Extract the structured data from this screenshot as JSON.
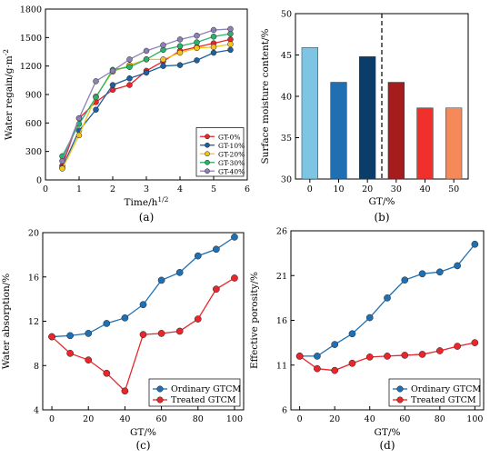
{
  "chart_data": [
    {
      "panel_label": "(a)",
      "type": "line",
      "xlabel": "Time/h¹ᐟ²",
      "xlabel_parts": [
        "Time/h",
        "1/2"
      ],
      "ylabel": "Water regain/g·m⁻²",
      "ylabel_parts": [
        "Water regain/g·m",
        "-2"
      ],
      "xlim": [
        0,
        6
      ],
      "ylim": [
        0,
        1800
      ],
      "xticks": [
        0,
        1,
        2,
        3,
        4,
        5,
        6
      ],
      "yticks": [
        0,
        300,
        600,
        900,
        1200,
        1500,
        1800
      ],
      "legend_position": "bottom-right",
      "x": [
        0.5,
        1,
        1.5,
        2,
        2.5,
        3,
        3.5,
        4,
        4.5,
        5,
        5.5
      ],
      "series": [
        {
          "name": "GT-0%",
          "color": "#e8262b",
          "values": [
            150,
            650,
            820,
            950,
            1000,
            1150,
            1250,
            1360,
            1400,
            1440,
            1480
          ]
        },
        {
          "name": "GT-10%",
          "color": "#1f5f9e",
          "values": [
            130,
            520,
            740,
            1000,
            1070,
            1130,
            1200,
            1210,
            1260,
            1340,
            1370
          ]
        },
        {
          "name": "GT-20%",
          "color": "#f5c21b",
          "values": [
            120,
            470,
            880,
            1140,
            1210,
            1270,
            1270,
            1340,
            1390,
            1400,
            1430
          ]
        },
        {
          "name": "GT-30%",
          "color": "#27b36b",
          "values": [
            250,
            590,
            870,
            1160,
            1190,
            1270,
            1370,
            1410,
            1450,
            1510,
            1540
          ]
        },
        {
          "name": "GT-40%",
          "color": "#8d7fb8",
          "values": [
            200,
            650,
            1040,
            1150,
            1270,
            1360,
            1420,
            1480,
            1520,
            1580,
            1590
          ]
        }
      ]
    },
    {
      "panel_label": "(b)",
      "type": "bar",
      "xlabel": "GT/%",
      "ylabel": "Surface moisture content/%",
      "categories": [
        "0",
        "10",
        "20",
        "30",
        "40",
        "50"
      ],
      "values": [
        45.9,
        41.7,
        44.8,
        41.7,
        38.6,
        38.6
      ],
      "bar_colors": [
        "#7ec4e3",
        "#1f6fb2",
        "#0b3d6b",
        "#a51c1c",
        "#f0302a",
        "#f5895a"
      ],
      "ylim": [
        30,
        50
      ],
      "yticks": [
        30,
        35,
        40,
        45,
        50
      ],
      "divider_between": [
        "20",
        "30"
      ]
    },
    {
      "panel_label": "(c)",
      "type": "line",
      "xlabel": "GT/%",
      "ylabel": "Water absorption/%",
      "xlim": [
        -5,
        105
      ],
      "ylim": [
        4,
        20
      ],
      "xticks": [
        0,
        20,
        40,
        60,
        80,
        100
      ],
      "yticks": [
        4,
        8,
        12,
        16,
        20
      ],
      "legend_position": "bottom-right",
      "x": [
        0,
        10,
        20,
        30,
        40,
        50,
        60,
        70,
        80,
        90,
        100
      ],
      "series": [
        {
          "name": "Ordinary GTCM",
          "color": "#1f6fb2",
          "values": [
            10.6,
            10.7,
            10.9,
            11.8,
            12.3,
            13.5,
            15.7,
            16.4,
            17.9,
            18.5,
            19.6
          ]
        },
        {
          "name": "Treated GTCM",
          "color": "#e8262b",
          "values": [
            10.6,
            9.1,
            8.5,
            7.3,
            5.7,
            10.8,
            10.9,
            11.1,
            12.2,
            14.9,
            15.9
          ]
        }
      ]
    },
    {
      "panel_label": "(d)",
      "type": "line",
      "xlabel": "GT/%",
      "ylabel": "Effective porosity/%",
      "xlim": [
        -5,
        105
      ],
      "ylim": [
        6,
        26
      ],
      "xticks": [
        0,
        20,
        40,
        60,
        80,
        100
      ],
      "yticks": [
        6,
        11,
        16,
        21,
        26
      ],
      "legend_position": "bottom-right",
      "x": [
        0,
        10,
        20,
        30,
        40,
        50,
        60,
        70,
        80,
        90,
        100
      ],
      "series": [
        {
          "name": "Ordinary GTCM",
          "color": "#1f6fb2",
          "values": [
            12.0,
            12.0,
            13.3,
            14.5,
            16.3,
            18.5,
            20.5,
            21.2,
            21.4,
            22.1,
            24.5
          ]
        },
        {
          "name": "Treated GTCM",
          "color": "#e8262b",
          "values": [
            12.0,
            10.6,
            10.4,
            11.2,
            11.9,
            12.0,
            12.1,
            12.2,
            12.6,
            13.1,
            13.5
          ]
        }
      ]
    }
  ]
}
